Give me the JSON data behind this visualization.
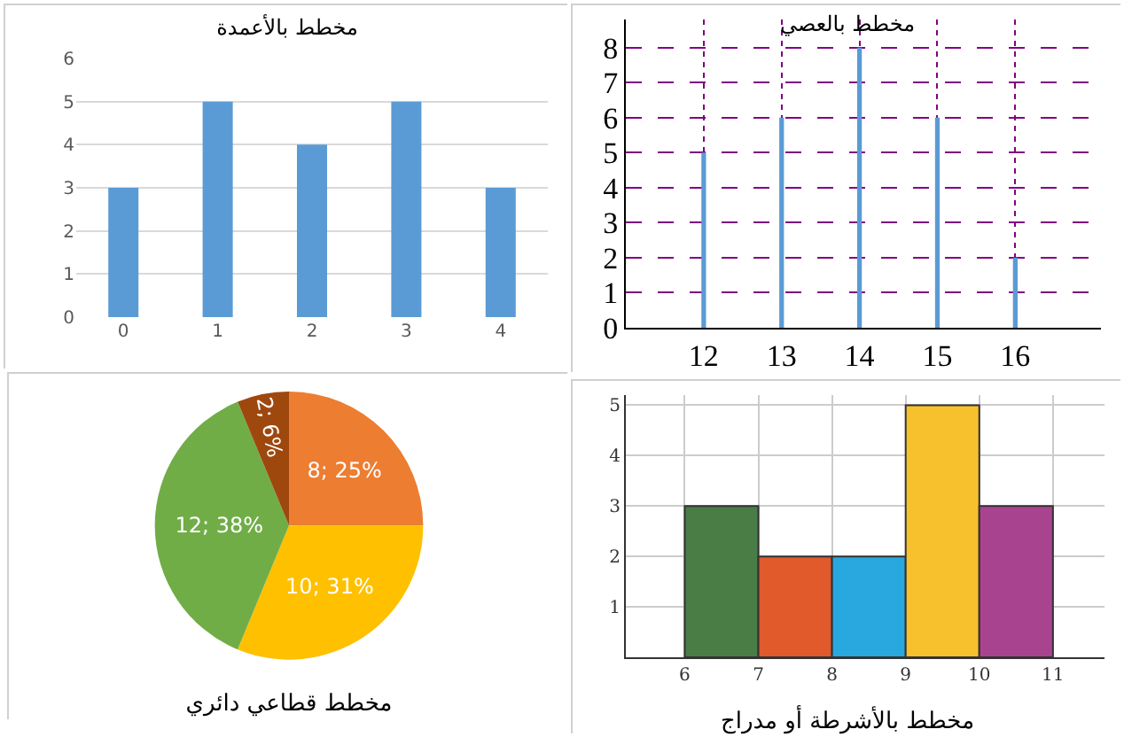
{
  "chart_data": [
    {
      "type": "bar",
      "title": "مخطط بالأعمدة",
      "categories": [
        "0",
        "1",
        "2",
        "3",
        "4"
      ],
      "values": [
        3,
        5,
        4,
        5,
        3
      ],
      "color": "#5b9bd5",
      "ylim": [
        0,
        6
      ],
      "yticks": [
        0,
        1,
        2,
        3,
        4,
        5,
        6
      ],
      "grid": "y"
    },
    {
      "type": "bar",
      "title": "مخطط بالعصي",
      "x": [
        12,
        13,
        14,
        15,
        16
      ],
      "values": [
        5,
        6,
        8,
        6,
        2
      ],
      "color": "#5b9bd5",
      "xlim": [
        11,
        17.1
      ],
      "xticks": [
        12,
        13,
        14,
        15,
        16
      ],
      "ylim": [
        0,
        8.8
      ],
      "yticks": [
        0,
        1,
        2,
        3,
        4,
        5,
        6,
        7,
        8
      ],
      "grid": true
    },
    {
      "type": "pie",
      "title": "مخطط قطاعي دائري",
      "categories": [
        null,
        null,
        null,
        null
      ],
      "values": [
        8,
        10,
        12,
        2
      ],
      "colors": [
        "#ed7d31",
        "#ffc000",
        "#70ad47",
        "#9e480e"
      ],
      "value_labels": [
        "8; 25%",
        "10; 31%",
        "12; 38%",
        "2; 6%"
      ]
    },
    {
      "type": "histogram",
      "title": "مخطط بالأشرطة أو مدراج",
      "bins": [
        6,
        7,
        8,
        9,
        10,
        11
      ],
      "values": [
        3,
        2,
        2,
        5,
        3
      ],
      "colors": [
        "#4a7d45",
        "#e05a2b",
        "#29a8e0",
        "#f7c12e",
        "#a8448f"
      ],
      "xlim": [
        5.2,
        11.7
      ],
      "xticks": [
        6,
        7,
        8,
        9,
        10,
        11
      ],
      "ylim": [
        0,
        5.2
      ],
      "yticks": [
        1,
        2,
        3,
        4,
        5
      ],
      "grid": true
    }
  ]
}
